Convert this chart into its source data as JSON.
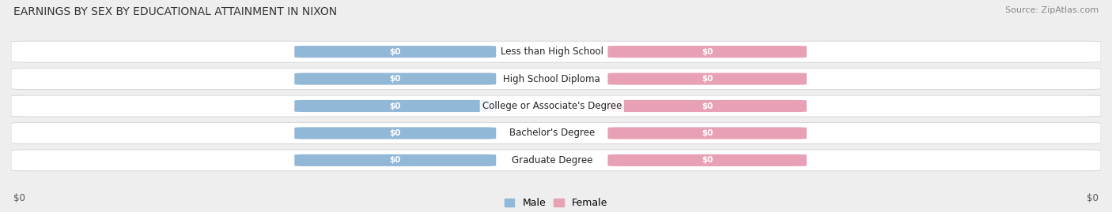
{
  "title": "EARNINGS BY SEX BY EDUCATIONAL ATTAINMENT IN NIXON",
  "source": "Source: ZipAtlas.com",
  "categories": [
    "Less than High School",
    "High School Diploma",
    "College or Associate's Degree",
    "Bachelor's Degree",
    "Graduate Degree"
  ],
  "male_values": [
    0,
    0,
    0,
    0,
    0
  ],
  "female_values": [
    0,
    0,
    0,
    0,
    0
  ],
  "male_color": "#92b8d8",
  "female_color": "#e8a0b4",
  "background_color": "#eeeeee",
  "row_bg_color": "#ffffff",
  "xlabel_left": "$0",
  "xlabel_right": "$0",
  "legend_male": "Male",
  "legend_female": "Female",
  "title_fontsize": 10,
  "source_fontsize": 8,
  "bar_value_fontsize": 7.5,
  "cat_fontsize": 8.5
}
